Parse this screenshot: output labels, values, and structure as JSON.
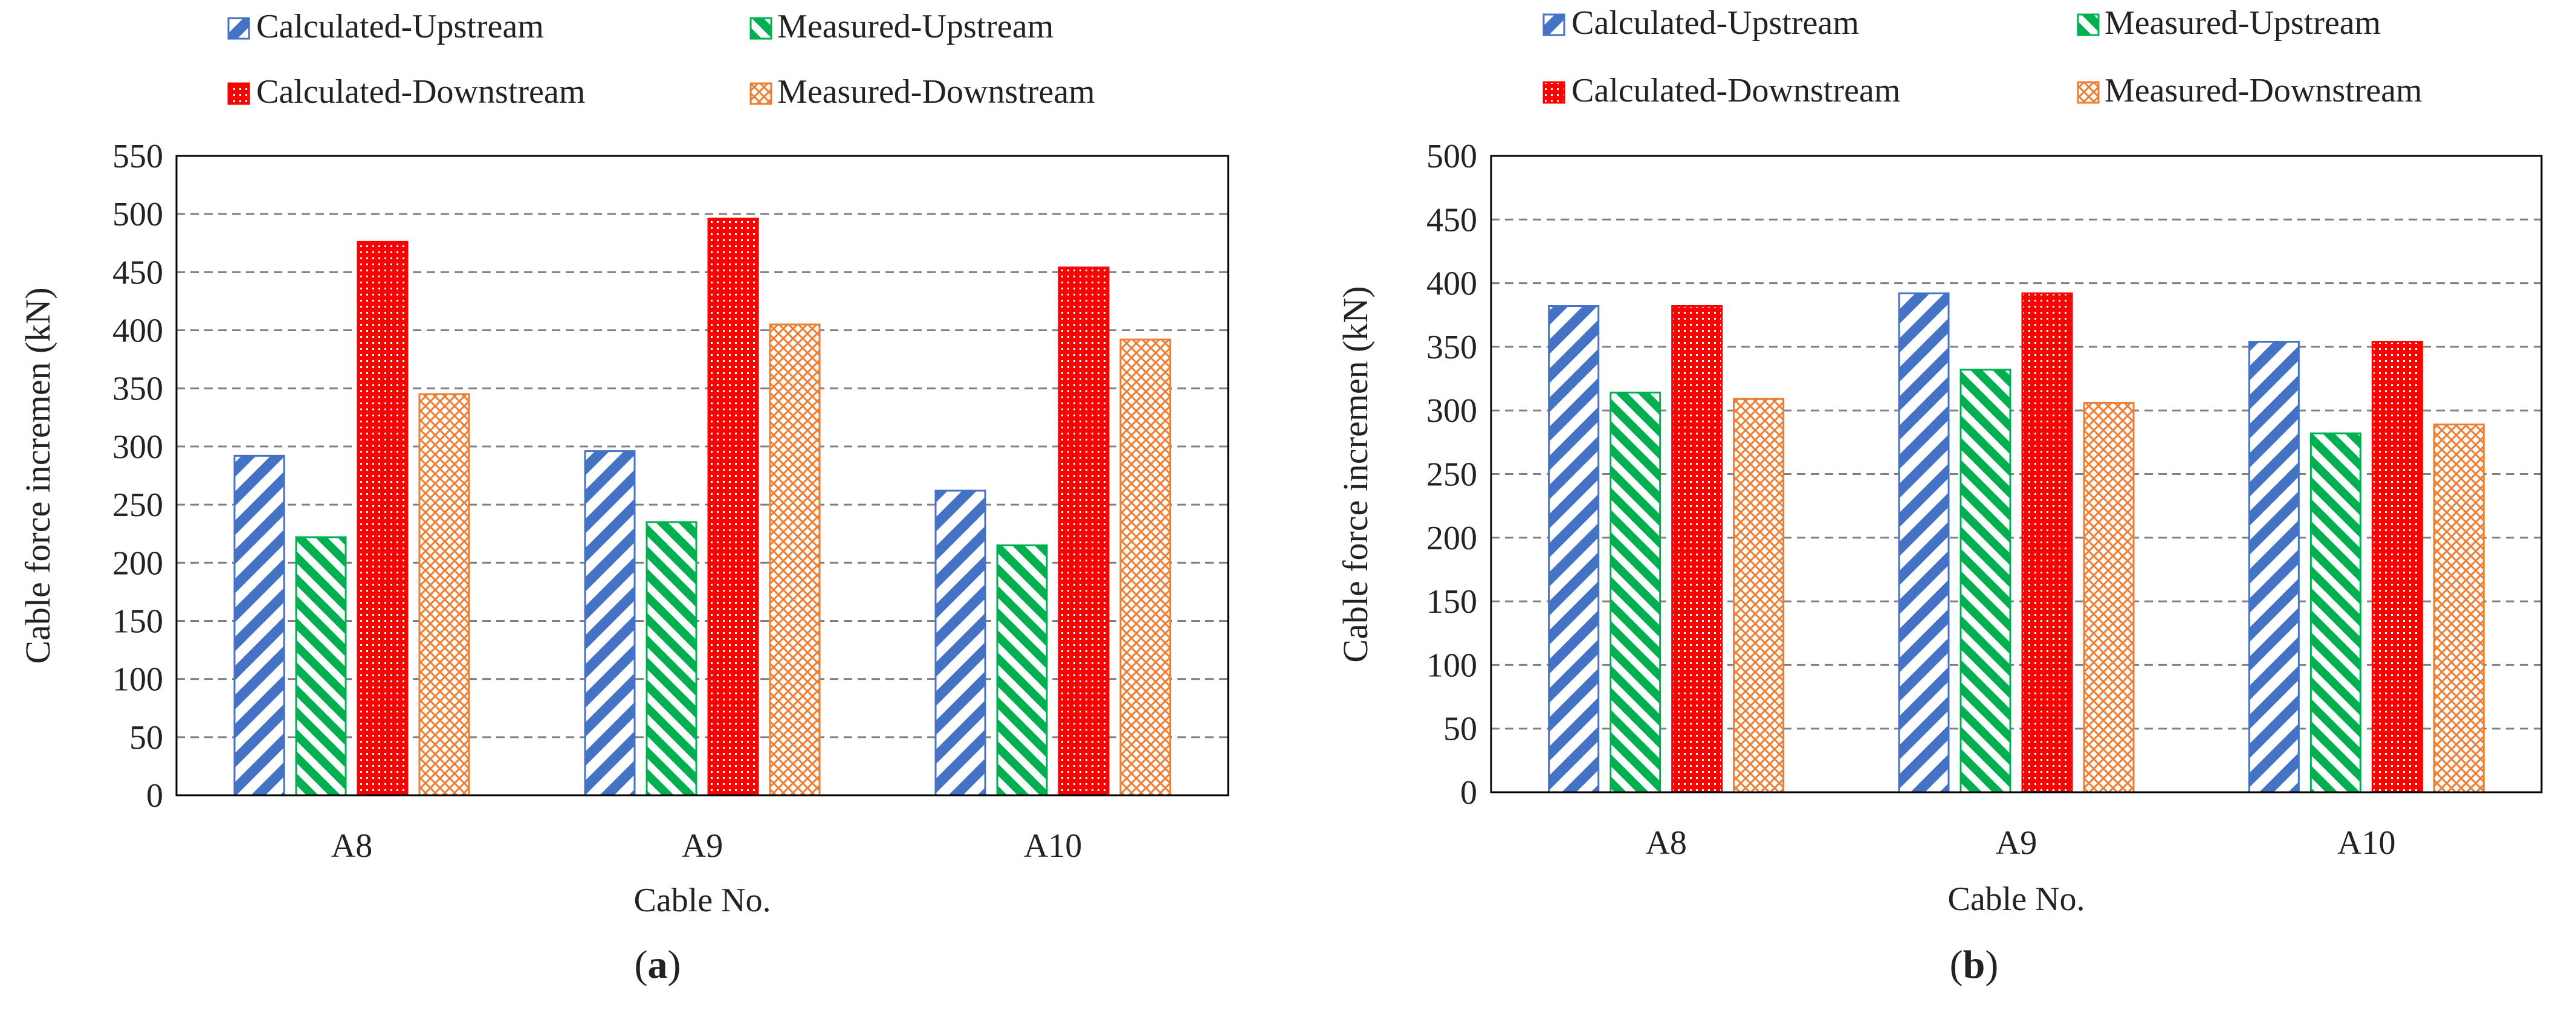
{
  "chart_data": [
    {
      "type": "bar",
      "panel_label": "a",
      "title": "",
      "xlabel": "Cable No.",
      "ylabel": "Cable force incremen (kN)",
      "categories": [
        "A8",
        "A9",
        "A10"
      ],
      "ylim": [
        0,
        550
      ],
      "yticks": [
        0,
        50,
        100,
        150,
        200,
        250,
        300,
        350,
        400,
        450,
        500,
        550
      ],
      "grid": true,
      "legend_position": "top",
      "series": [
        {
          "name": "Calculated-Upstream",
          "pattern": "diagonal-hatch",
          "values": [
            292,
            296,
            262
          ]
        },
        {
          "name": "Measured-Upstream",
          "pattern": "diagonal-hatch",
          "values": [
            222,
            235,
            215
          ]
        },
        {
          "name": "Calculated-Downstream",
          "pattern": "dense-grid",
          "values": [
            476,
            496,
            454
          ]
        },
        {
          "name": "Measured-Downstream",
          "pattern": "crosshatch",
          "values": [
            345,
            405,
            392
          ]
        }
      ]
    },
    {
      "type": "bar",
      "panel_label": "b",
      "title": "",
      "xlabel": "Cable No.",
      "ylabel": "Cable force incremen (kN)",
      "categories": [
        "A8",
        "A9",
        "A10"
      ],
      "ylim": [
        0,
        500
      ],
      "yticks": [
        0,
        50,
        100,
        150,
        200,
        250,
        300,
        350,
        400,
        450,
        500
      ],
      "grid": true,
      "legend_position": "top",
      "series": [
        {
          "name": "Calculated-Upstream",
          "pattern": "diagonal-hatch",
          "values": [
            382,
            392,
            354
          ]
        },
        {
          "name": "Measured-Upstream",
          "pattern": "diagonal-hatch",
          "values": [
            314,
            332,
            282
          ]
        },
        {
          "name": "Calculated-Downstream",
          "pattern": "dense-grid",
          "values": [
            382,
            392,
            354
          ]
        },
        {
          "name": "Measured-Downstream",
          "pattern": "crosshatch",
          "values": [
            309,
            306,
            289
          ]
        }
      ]
    }
  ],
  "colors": {
    "calculated_upstream": "#4472c4",
    "measured_upstream": "#00b050",
    "calculated_downstream": "#ff0000",
    "measured_downstream": "#ed7d31",
    "axis": "#000000",
    "grid": "#808080",
    "text": "#222222"
  }
}
